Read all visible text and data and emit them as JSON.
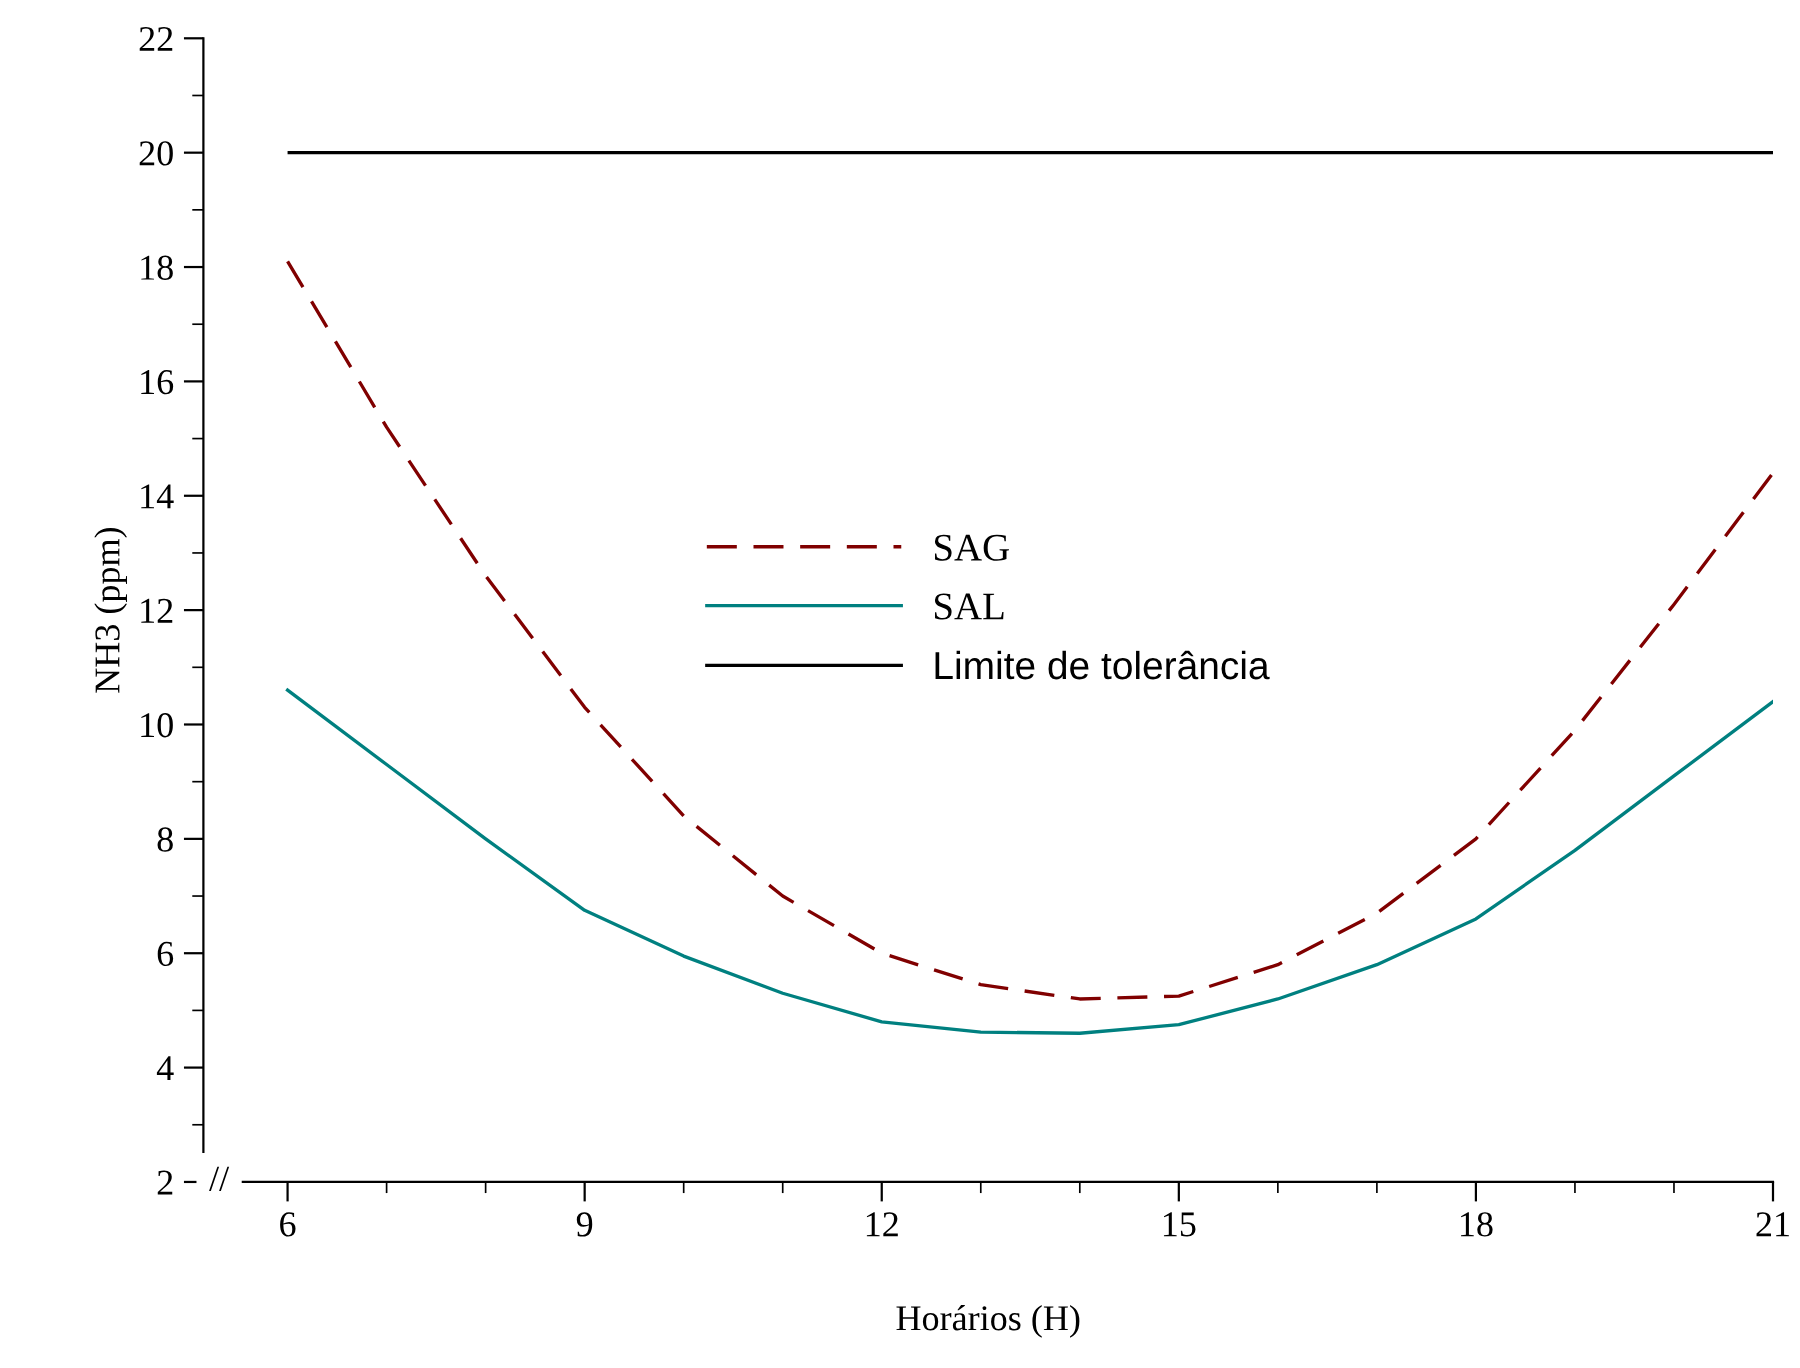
{
  "chart_data": {
    "type": "line",
    "xlabel": "Horários (H)",
    "ylabel": "NH3 (ppm)",
    "x": [
      6,
      7,
      8,
      9,
      10,
      11,
      12,
      13,
      14,
      15,
      16,
      17,
      18,
      19,
      20,
      21
    ],
    "series": [
      {
        "name": "SAG",
        "color": "#800000",
        "line_style": "dashed",
        "values": [
          18.1,
          15.2,
          12.6,
          10.3,
          8.4,
          7.0,
          6.0,
          5.45,
          5.2,
          5.25,
          5.8,
          6.7,
          8.0,
          9.9,
          12.1,
          14.4
        ]
      },
      {
        "name": "SAL",
        "color": "#008080",
        "line_style": "solid",
        "values": [
          10.6,
          9.3,
          8.0,
          6.75,
          5.95,
          5.3,
          4.8,
          4.62,
          4.6,
          4.75,
          5.2,
          5.8,
          6.6,
          7.8,
          9.1,
          10.4
        ]
      }
    ],
    "ref_lines": [
      {
        "axis": "y",
        "value": 20,
        "label": "Limite de tolerância",
        "color": "#000000"
      }
    ],
    "xlim": [
      5.15,
      21
    ],
    "xticks": [
      6,
      9,
      12,
      15,
      18,
      21
    ],
    "ylim": [
      2,
      22
    ],
    "yticks": [
      2,
      4,
      6,
      8,
      10,
      12,
      14,
      16,
      18,
      20,
      22
    ],
    "annotations": [
      "//"
    ],
    "legend": "center",
    "grid": false,
    "marker": "none"
  }
}
